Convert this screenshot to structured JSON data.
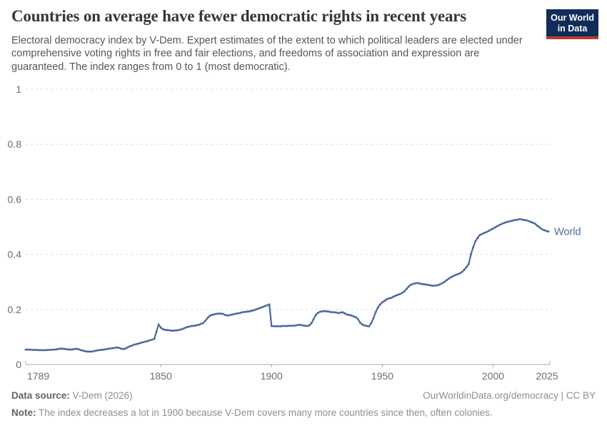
{
  "header": {
    "title": "Countries on average have fewer democratic rights in recent years",
    "subtitle": "Electoral democracy index by V-Dem. Expert estimates of the extent to which political leaders are elected under comprehensive voting rights in free and fair elections, and freedoms of association and expression are guaranteed. The index ranges from 0 to 1 (most democratic).",
    "logo": {
      "line1": "Our World",
      "line2": "in Data",
      "bg_color": "#102d59",
      "accent_color": "#c0392d"
    }
  },
  "chart_data": {
    "type": "line",
    "title": "Countries on average have fewer democratic rights in recent years",
    "xlabel": "",
    "ylabel": "Electoral democracy index",
    "xlim": [
      1789,
      2025
    ],
    "ylim": [
      0,
      1
    ],
    "grid": "horizontal dashed",
    "legend_position": "end-of-line label",
    "x_ticks": [
      1789,
      1850,
      1900,
      1950,
      2000,
      2025
    ],
    "y_ticks": [
      0,
      0.2,
      0.4,
      0.6,
      0.8,
      1
    ],
    "line_color": "#4C6A9C",
    "end_label": "World",
    "series": [
      {
        "name": "World",
        "start_year": 1789,
        "end_year": 2025,
        "values": [
          0.054,
          0.054,
          0.054,
          0.053,
          0.053,
          0.053,
          0.052,
          0.052,
          0.052,
          0.052,
          0.053,
          0.053,
          0.054,
          0.054,
          0.055,
          0.057,
          0.058,
          0.057,
          0.056,
          0.055,
          0.054,
          0.055,
          0.056,
          0.057,
          0.055,
          0.052,
          0.05,
          0.048,
          0.047,
          0.047,
          0.047,
          0.049,
          0.051,
          0.052,
          0.053,
          0.054,
          0.055,
          0.057,
          0.058,
          0.059,
          0.06,
          0.062,
          0.061,
          0.058,
          0.056,
          0.058,
          0.062,
          0.066,
          0.069,
          0.072,
          0.074,
          0.076,
          0.079,
          0.081,
          0.083,
          0.085,
          0.088,
          0.09,
          0.093,
          0.118,
          0.145,
          0.134,
          0.128,
          0.126,
          0.125,
          0.124,
          0.123,
          0.123,
          0.124,
          0.125,
          0.127,
          0.13,
          0.133,
          0.136,
          0.138,
          0.14,
          0.141,
          0.142,
          0.144,
          0.147,
          0.15,
          0.158,
          0.168,
          0.176,
          0.18,
          0.182,
          0.184,
          0.185,
          0.185,
          0.184,
          0.18,
          0.178,
          0.179,
          0.181,
          0.183,
          0.185,
          0.186,
          0.188,
          0.19,
          0.191,
          0.192,
          0.193,
          0.195,
          0.197,
          0.2,
          0.203,
          0.206,
          0.209,
          0.212,
          0.215,
          0.218,
          0.14,
          0.139,
          0.139,
          0.139,
          0.139,
          0.14,
          0.14,
          0.14,
          0.141,
          0.141,
          0.141,
          0.142,
          0.144,
          0.144,
          0.142,
          0.141,
          0.14,
          0.142,
          0.15,
          0.165,
          0.18,
          0.188,
          0.192,
          0.193,
          0.194,
          0.193,
          0.192,
          0.19,
          0.19,
          0.189,
          0.187,
          0.188,
          0.19,
          0.186,
          0.182,
          0.18,
          0.178,
          0.175,
          0.172,
          0.165,
          0.152,
          0.145,
          0.142,
          0.14,
          0.139,
          0.15,
          0.168,
          0.19,
          0.207,
          0.218,
          0.226,
          0.231,
          0.237,
          0.24,
          0.242,
          0.246,
          0.25,
          0.253,
          0.256,
          0.26,
          0.266,
          0.275,
          0.284,
          0.29,
          0.293,
          0.295,
          0.296,
          0.294,
          0.292,
          0.291,
          0.29,
          0.289,
          0.287,
          0.286,
          0.287,
          0.288,
          0.291,
          0.295,
          0.3,
          0.306,
          0.312,
          0.317,
          0.321,
          0.325,
          0.328,
          0.331,
          0.336,
          0.344,
          0.354,
          0.365,
          0.4,
          0.425,
          0.447,
          0.46,
          0.47,
          0.474,
          0.478,
          0.481,
          0.485,
          0.49,
          0.494,
          0.498,
          0.503,
          0.507,
          0.511,
          0.514,
          0.517,
          0.519,
          0.521,
          0.523,
          0.525,
          0.526,
          0.528,
          0.527,
          0.525,
          0.524,
          0.521,
          0.518,
          0.515,
          0.511,
          0.504,
          0.498,
          0.492,
          0.488,
          0.485,
          0.483
        ]
      }
    ]
  },
  "footer": {
    "datasource_label": "Data source:",
    "datasource_value": " V-Dem (2026)",
    "link": "OurWorldinData.org/democracy | CC BY",
    "note_label": "Note:",
    "note_value": " The index decreases a lot in 1900 because V-Dem covers many more countries since then, often colonies."
  }
}
